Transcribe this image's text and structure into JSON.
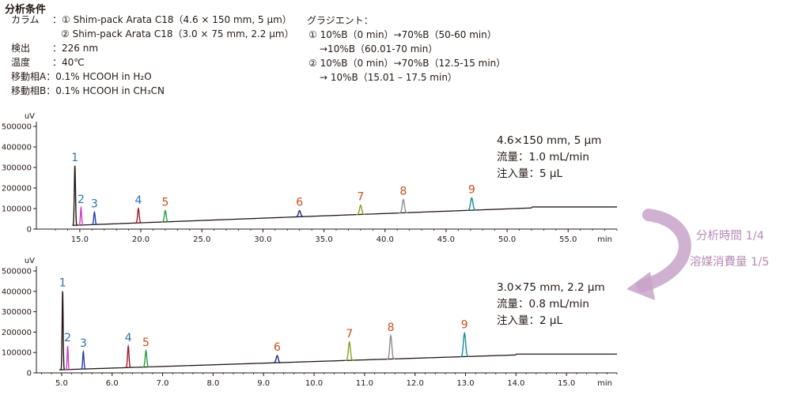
{
  "conditions": {
    "heading": "分析条件",
    "column_label": "カラム",
    "column_1": "：① Shim-pack Arata C18（4.6 × 150 mm, 5 µm）",
    "column_2": "② Shim-pack Arata C18（3.0 × 75 mm, 2.2 µm）",
    "detection_label": "検出",
    "detection_value": "：226 nm",
    "temperature_label": "温度",
    "temperature_value": "：40℃",
    "mobile_a_label": "移動相A",
    "mobile_a_value": "：0.1% HCOOH in H₂O",
    "mobile_b_label": "移動相B",
    "mobile_b_value": "：0.1% HCOOH in CH₃CN",
    "gradient_label": "グラジエント：",
    "gradient_1a": "① 10%B（0 min）→70%B（50-60 min）",
    "gradient_1b": "→10%B（60.01-70 min）",
    "gradient_2a": "② 10%B（0 min）→70%B（12.5-15 min）",
    "gradient_2b": "→ 10%B（15.01 – 17.5 min）"
  },
  "colors": {
    "axis": "#231815",
    "baseline": "#231815",
    "label_blue": "#2e6fa7",
    "label_orange": "#c8501e",
    "arrow": "#c9a3c9",
    "peak_colors": [
      "#231815",
      "#d23cc8",
      "#1f3fb0",
      "#9e1b2d",
      "#2a9a3c",
      "#1a2a80",
      "#8b9a20",
      "#8c8c8c",
      "#1a8a96"
    ],
    "peak_label_colors": [
      "#2e6fa7",
      "#2e6fa7",
      "#2e6fa7",
      "#2e6fa7",
      "#c8501e",
      "#c8501e",
      "#c8501e",
      "#c8501e",
      "#c8501e"
    ]
  },
  "chart_data": [
    {
      "type": "line",
      "ylabel": "uV",
      "xlabel": "min",
      "xlim": [
        13.0,
        59.0
      ],
      "ylim": [
        0,
        500000
      ],
      "x_ticks": [
        "15.0",
        "20.0",
        "25.0",
        "30.0",
        "35.0",
        "40.0",
        "45.0",
        "50.0",
        "55.0"
      ],
      "x_tick_values": [
        15,
        20,
        25,
        30,
        35,
        40,
        45,
        50,
        55
      ],
      "y_ticks": [
        "0",
        "100000",
        "200000",
        "300000",
        "400000",
        "500000"
      ],
      "y_tick_values": [
        0,
        100000,
        200000,
        300000,
        400000,
        500000
      ],
      "trace_start": 14.4,
      "trace_end": 59.0,
      "baseline": {
        "start": [
          14.4,
          18000
        ],
        "end": [
          52.0,
          103000
        ],
        "plateau": 108000
      },
      "peaks": [
        {
          "label": "1",
          "rt": 14.6,
          "height": 290000,
          "width": 0.12
        },
        {
          "label": "2",
          "rt": 15.1,
          "height": 85000,
          "width": 0.12
        },
        {
          "label": "3",
          "rt": 16.2,
          "height": 60000,
          "width": 0.14
        },
        {
          "label": "4",
          "rt": 19.8,
          "height": 70000,
          "width": 0.16
        },
        {
          "label": "5",
          "rt": 22.0,
          "height": 55000,
          "width": 0.18
        },
        {
          "label": "6",
          "rt": 33.0,
          "height": 30000,
          "width": 0.22
        },
        {
          "label": "7",
          "rt": 38.0,
          "height": 45000,
          "width": 0.22
        },
        {
          "label": "8",
          "rt": 41.5,
          "height": 65000,
          "width": 0.22
        },
        {
          "label": "9",
          "rt": 47.1,
          "height": 60000,
          "width": 0.24
        }
      ],
      "info": [
        "4.6×150 mm, 5 µm",
        "流量：1.0 mL/min",
        "注入量：5 µL"
      ]
    },
    {
      "type": "line",
      "ylabel": "uV",
      "xlabel": "min",
      "xlim": [
        4.5,
        16.0
      ],
      "ylim": [
        0,
        500000
      ],
      "x_ticks": [
        "5.0",
        "6.0",
        "7.0",
        "8.0",
        "9.0",
        "10.0",
        "11.0",
        "12.0",
        "13.0",
        "14.0",
        "15.0"
      ],
      "x_tick_values": [
        5,
        6,
        7,
        8,
        9,
        10,
        11,
        12,
        13,
        14,
        15
      ],
      "y_ticks": [
        "0",
        "100000",
        "200000",
        "300000",
        "400000",
        "500000"
      ],
      "y_tick_values": [
        0,
        100000,
        200000,
        300000,
        400000,
        500000
      ],
      "trace_start": 4.95,
      "trace_end": 16.0,
      "baseline": {
        "start": [
          4.95,
          15000
        ],
        "end": [
          14.0,
          88000
        ],
        "plateau": 92000
      },
      "peaks": [
        {
          "label": "1",
          "rt": 5.02,
          "height": 385000,
          "width": 0.025
        },
        {
          "label": "2",
          "rt": 5.12,
          "height": 115000,
          "width": 0.025
        },
        {
          "label": "3",
          "rt": 5.43,
          "height": 85000,
          "width": 0.03
        },
        {
          "label": "4",
          "rt": 6.32,
          "height": 105000,
          "width": 0.035
        },
        {
          "label": "5",
          "rt": 6.67,
          "height": 80000,
          "width": 0.04
        },
        {
          "label": "6",
          "rt": 9.27,
          "height": 35000,
          "width": 0.05
        },
        {
          "label": "7",
          "rt": 10.7,
          "height": 90000,
          "width": 0.05
        },
        {
          "label": "8",
          "rt": 11.52,
          "height": 115000,
          "width": 0.05
        },
        {
          "label": "9",
          "rt": 12.98,
          "height": 115000,
          "width": 0.055
        }
      ],
      "info": [
        "3.0×75 mm, 2.2 µm",
        "流量：0.8 mL/min",
        "注入量：2 µL"
      ]
    }
  ],
  "side_note": {
    "line1": "分析時間 1/4",
    "line2": "溶媒消費量 1/5"
  }
}
